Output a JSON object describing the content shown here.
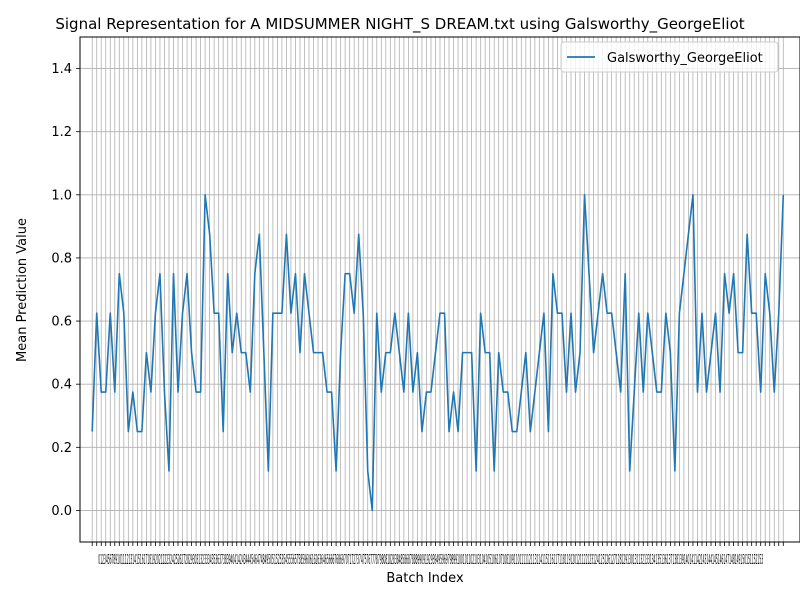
{
  "chart_data": {
    "type": "line",
    "title": "Signal Representation for A MIDSUMMER NIGHT_S DREAM.txt using Galsworthy_GeorgeEliot",
    "xlabel": "Batch Index",
    "ylabel": "Mean Prediction Value",
    "ylim": [
      -0.1,
      1.5
    ],
    "xlim": [
      -2.7,
      156.7
    ],
    "y_ticks": [
      "0.0",
      "0.2",
      "0.4",
      "0.6",
      "0.8",
      "1.0",
      "1.2",
      "1.4"
    ],
    "x_tick_values": [
      0,
      1,
      2,
      3,
      4,
      5,
      6,
      7,
      8,
      9,
      10,
      11,
      12,
      13,
      14,
      15,
      16,
      17,
      18,
      19,
      20,
      21,
      22,
      23,
      24,
      25,
      26,
      27,
      28,
      29,
      30,
      31,
      32,
      33,
      34,
      35,
      36,
      37,
      38,
      39,
      40,
      41,
      42,
      43,
      44,
      45,
      46,
      47,
      48,
      49,
      50,
      51,
      52,
      53,
      54,
      55,
      56,
      57,
      58,
      59,
      60,
      61,
      62,
      63,
      64,
      65,
      66,
      67,
      68,
      69,
      70,
      71,
      72,
      73,
      74,
      75,
      76,
      77,
      78,
      79,
      80,
      81,
      82,
      83,
      84,
      85,
      86,
      87,
      88,
      89,
      90,
      91,
      92,
      93,
      94,
      95,
      96,
      97,
      98,
      99,
      100,
      101,
      102,
      103,
      104,
      105,
      106,
      107,
      108,
      109,
      110,
      111,
      112,
      113,
      114,
      115,
      116,
      117,
      118,
      119,
      120,
      121,
      122,
      123,
      124,
      125,
      126,
      127,
      128,
      129,
      130,
      131,
      132,
      133,
      134,
      135,
      136,
      137,
      138,
      139,
      140,
      141,
      142,
      143,
      144,
      145,
      146,
      147,
      148,
      149,
      150,
      151,
      152,
      153
    ],
    "x_tick_text": "0123456789101112131415161718192021222324252627282930313233343536373839404142434445464748495051525354555657585960616263646566676869707172737475767778798081828384858687888990919293949596979899100101102103104105106107108109110111112113114115116117118119120121122123124125126127128129130131132133134135136137138139140141142143144145146147148149150151152153",
    "grid": true,
    "legend_position": "upper right",
    "series": [
      {
        "name": "Galsworthy_GeorgeEliot",
        "color": "#1f77b4",
        "values": [
          0.25,
          0.625,
          0.375,
          0.375,
          0.625,
          0.375,
          0.75,
          0.625,
          0.25,
          0.375,
          0.25,
          0.25,
          0.5,
          0.375,
          0.625,
          0.75,
          0.375,
          0.125,
          0.75,
          0.375,
          0.625,
          0.75,
          0.5,
          0.375,
          0.375,
          1.0,
          0.875,
          0.625,
          0.625,
          0.25,
          0.75,
          0.5,
          0.625,
          0.5,
          0.5,
          0.375,
          0.75,
          0.875,
          0.5,
          0.125,
          0.625,
          0.625,
          0.625,
          0.875,
          0.625,
          0.75,
          0.5,
          0.75,
          0.625,
          0.5,
          0.5,
          0.5,
          0.375,
          0.375,
          0.125,
          0.5,
          0.75,
          0.75,
          0.625,
          0.875,
          0.625,
          0.125,
          0.0,
          0.625,
          0.375,
          0.5,
          0.5,
          0.625,
          0.5,
          0.375,
          0.625,
          0.375,
          0.5,
          0.25,
          0.375,
          0.375,
          0.5,
          0.625,
          0.625,
          0.25,
          0.375,
          0.25,
          0.5,
          0.5,
          0.5,
          0.125,
          0.625,
          0.5,
          0.5,
          0.125,
          0.5,
          0.375,
          0.375,
          0.25,
          0.25,
          0.375,
          0.5,
          0.25,
          0.375,
          0.5,
          0.625,
          0.25,
          0.75,
          0.625,
          0.625,
          0.375,
          0.625,
          0.375,
          0.5,
          1.0,
          0.75,
          0.5,
          0.625,
          0.75,
          0.625,
          0.625,
          0.5,
          0.375,
          0.75,
          0.125,
          0.375,
          0.625,
          0.375,
          0.625,
          0.5,
          0.375,
          0.375,
          0.625,
          0.5,
          0.125,
          0.625,
          0.75,
          0.875,
          1.0,
          0.375,
          0.625,
          0.375,
          0.5,
          0.625,
          0.375,
          0.75,
          0.625,
          0.75,
          0.5,
          0.5,
          0.875,
          0.625,
          0.625,
          0.375,
          0.75,
          0.625,
          0.375,
          0.625,
          1.0
        ]
      }
    ]
  }
}
